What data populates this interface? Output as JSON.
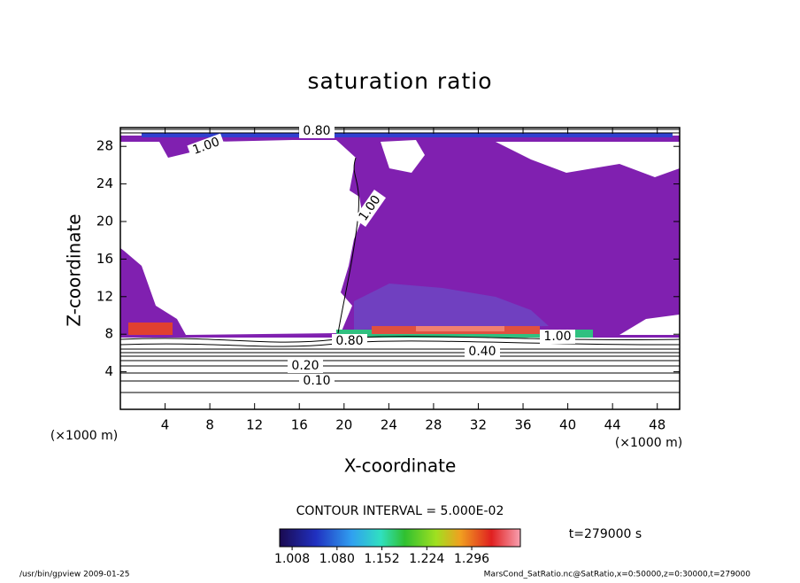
{
  "chart_data": {
    "type": "contour",
    "title": "saturation ratio",
    "xlabel": "X-coordinate",
    "ylabel": "Z-coordinate",
    "x_unit_labels": [
      "(×1000 m)",
      "(×1000 m)"
    ],
    "xlim": [
      0,
      50
    ],
    "ylim": [
      0,
      30
    ],
    "xticks": [
      4,
      8,
      12,
      16,
      20,
      24,
      28,
      32,
      36,
      40,
      44,
      48
    ],
    "yticks": [
      4,
      8,
      12,
      16,
      20,
      24,
      28
    ],
    "contour_labels": [
      {
        "value": 1.0,
        "label": "1.00"
      },
      {
        "value": 0.8,
        "label": "0.80"
      },
      {
        "value": 1.0,
        "label": "1.00"
      },
      {
        "value": 1.0,
        "label": "1.00"
      },
      {
        "value": 0.8,
        "label": "0.80"
      },
      {
        "value": 0.4,
        "label": "0.40"
      },
      {
        "value": 0.2,
        "label": "0.20"
      },
      {
        "value": 0.1,
        "label": "0.10"
      }
    ],
    "contour_interval_text": "CONTOUR INTERVAL = 5.000E-02",
    "colorbar": {
      "clim": [
        0.988,
        1.374
      ],
      "ticks": [
        {
          "value": 1.008,
          "label": "1.008"
        },
        {
          "value": 1.08,
          "label": "1.080"
        },
        {
          "value": 1.152,
          "label": "1.152"
        },
        {
          "value": 1.224,
          "label": "1.224"
        },
        {
          "value": 1.296,
          "label": "1.296"
        }
      ]
    },
    "time_text": "t=279000 s",
    "footer_left": "/usr/bin/gpview  2009-01-25",
    "footer_right": "MarsCond_SatRatio.nc@SatRatio,x=0:50000,z=0:30000,t=279000"
  }
}
